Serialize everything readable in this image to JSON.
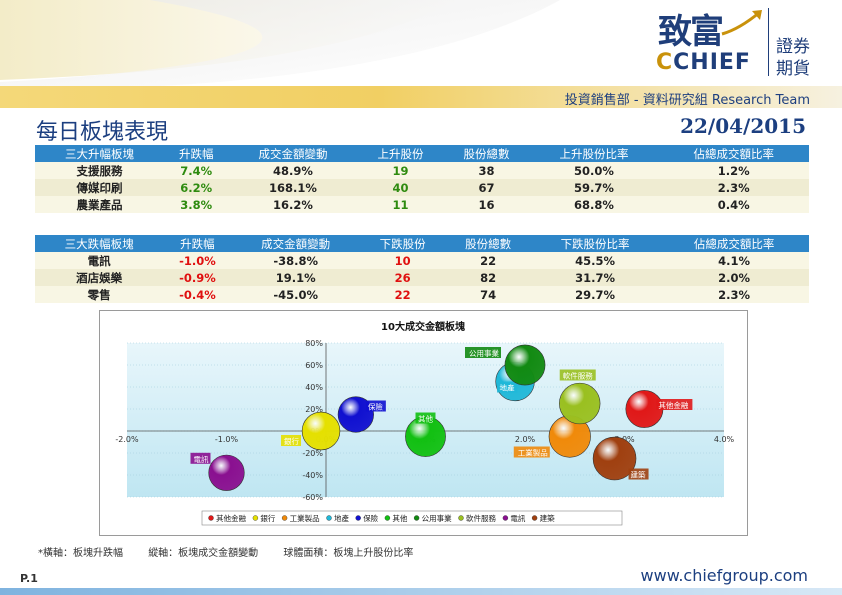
{
  "header": {
    "logo_cn": "致富",
    "logo_en_c": "C",
    "logo_en_rest": "CHIEF",
    "logo_side_1": "證券",
    "logo_side_2": "期貨",
    "dept": "投資銷售部 - 資料研究組 Research Team",
    "title": "每日板塊表現",
    "date": "22/04/2015"
  },
  "top_table": {
    "headers": [
      "三大升幅板塊",
      "升跌幅",
      "成交金額變動",
      "上升股份",
      "股份總數",
      "上升股份比率",
      "佔總成交額比率"
    ],
    "rows": [
      [
        "支援服務",
        "7.4%",
        "48.9%",
        "19",
        "38",
        "50.0%",
        "1.2%"
      ],
      [
        "傳媒印刷",
        "6.2%",
        "168.1%",
        "40",
        "67",
        "59.7%",
        "2.3%"
      ],
      [
        "農業產品",
        "3.8%",
        "16.2%",
        "11",
        "16",
        "68.8%",
        "0.4%"
      ]
    ]
  },
  "bottom_table": {
    "headers": [
      "三大跌幅板塊",
      "升跌幅",
      "成交金額變動",
      "下跌股份",
      "股份總數",
      "下跌股份比率",
      "佔總成交額比率"
    ],
    "rows": [
      [
        "電訊",
        "-1.0%",
        "-38.8%",
        "10",
        "22",
        "45.5%",
        "4.1%"
      ],
      [
        "酒店娛樂",
        "-0.9%",
        "19.1%",
        "26",
        "82",
        "31.7%",
        "2.0%"
      ],
      [
        "零售",
        "-0.4%",
        "-45.0%",
        "22",
        "74",
        "29.7%",
        "2.3%"
      ]
    ]
  },
  "chart_data": {
    "type": "scatter",
    "title": "10大成交金額板塊",
    "xlim": [
      -2.0,
      4.0
    ],
    "ylim": [
      -60,
      80
    ],
    "x_ticks": [
      "-2.0%",
      "-1.0%",
      "0.0%",
      "1.0%",
      "2.0%",
      "3.0%",
      "4.0%"
    ],
    "y_ticks": [
      "80%",
      "60%",
      "40%",
      "20%",
      "0%",
      "-20%",
      "-40%",
      "-60%"
    ],
    "series": [
      {
        "name": "其他金融",
        "x": 3.2,
        "y": 20,
        "size": 0.6,
        "color": "#e01818"
      },
      {
        "name": "銀行",
        "x": -0.05,
        "y": 0,
        "size": 0.62,
        "color": "#e5e000"
      },
      {
        "name": "工業製品",
        "x": 2.45,
        "y": -5,
        "size": 0.75,
        "color": "#f08a0a"
      },
      {
        "name": "地產",
        "x": 1.9,
        "y": 45,
        "size": 0.65,
        "color": "#20b8d8"
      },
      {
        "name": "保險",
        "x": 0.3,
        "y": 15,
        "size": 0.55,
        "color": "#1010d0"
      },
      {
        "name": "其他",
        "x": 1.0,
        "y": -5,
        "size": 0.7,
        "color": "#12c012"
      },
      {
        "name": "公用事業",
        "x": 2.0,
        "y": 60,
        "size": 0.7,
        "color": "#128a12"
      },
      {
        "name": "軟件服務",
        "x": 2.55,
        "y": 25,
        "size": 0.72,
        "color": "#9ac020"
      },
      {
        "name": "電訊",
        "x": -1.0,
        "y": -38,
        "size": 0.55,
        "color": "#8a1090"
      },
      {
        "name": "建築",
        "x": 2.9,
        "y": -25,
        "size": 0.8,
        "color": "#a04010"
      }
    ]
  },
  "footnote": {
    "x_axis": "*橫軸：板塊升跌幅",
    "y_axis": "縱軸：板塊成交金額變動",
    "bubble": "球體面積：板塊上升股份比率"
  },
  "footer": {
    "page": "P.1",
    "url": "www.chiefgroup.com"
  }
}
